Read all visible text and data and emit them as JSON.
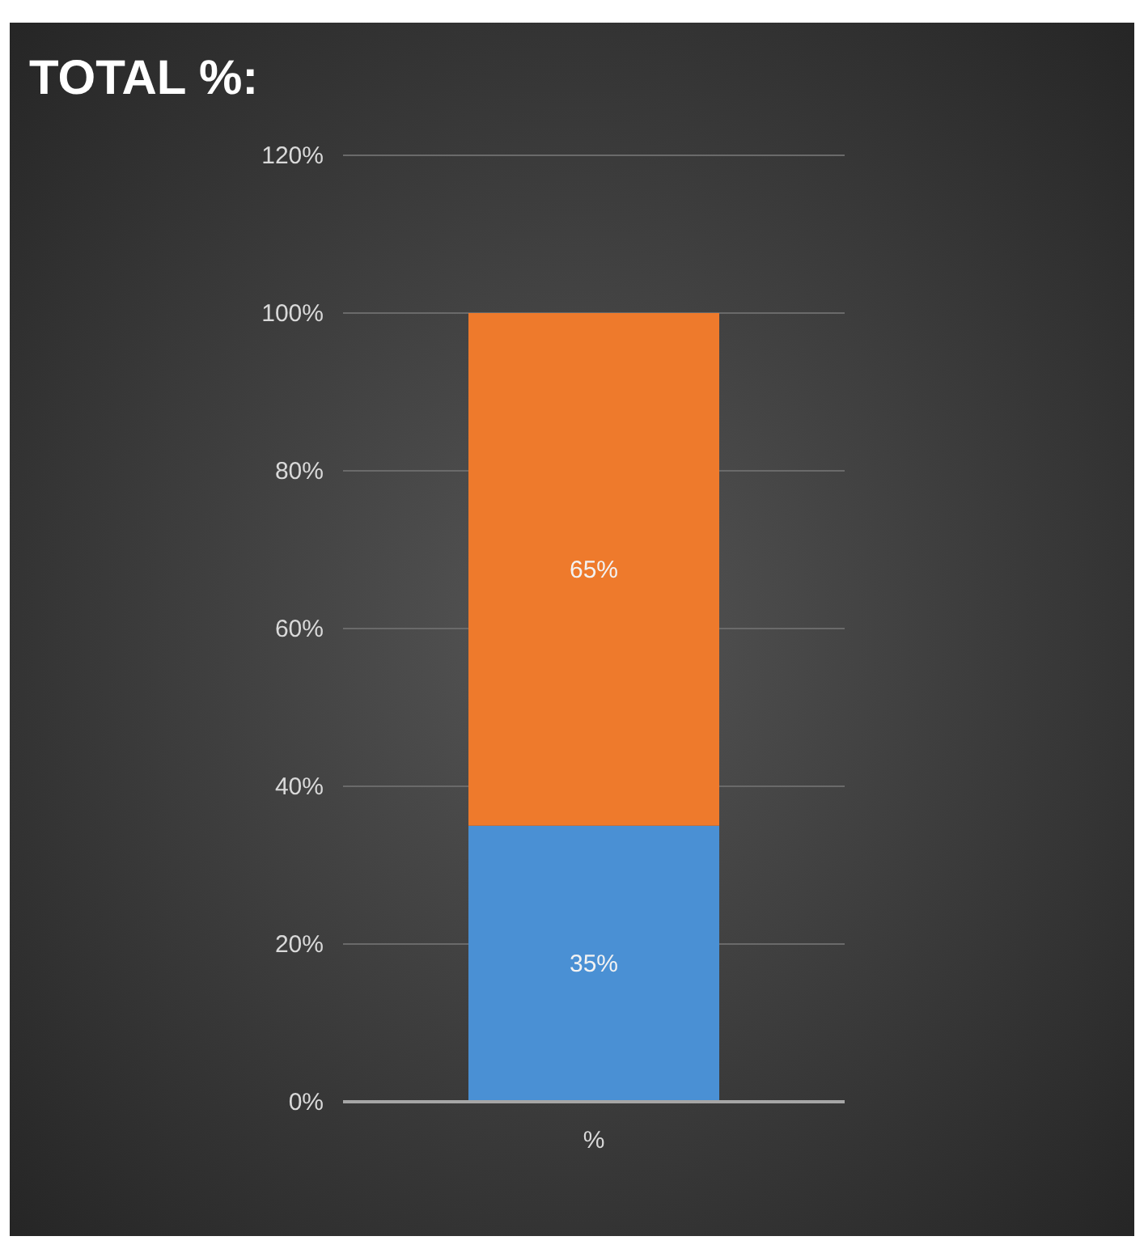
{
  "chart_data": {
    "type": "bar",
    "title": "TOTAL %:",
    "categories": [
      "%"
    ],
    "stacked": true,
    "series": [
      {
        "color": "#4a90d4",
        "values": [
          35
        ],
        "value_labels": [
          "35%"
        ]
      },
      {
        "color": "#ee7a2c",
        "values": [
          65
        ],
        "value_labels": [
          "65%"
        ]
      }
    ],
    "ylim": [
      0,
      120
    ],
    "yticks": [
      {
        "value": 0,
        "label": "0%"
      },
      {
        "value": 20,
        "label": "20%"
      },
      {
        "value": 40,
        "label": "40%"
      },
      {
        "value": 60,
        "label": "60%"
      },
      {
        "value": 80,
        "label": "80%"
      },
      {
        "value": 100,
        "label": "100%"
      },
      {
        "value": 120,
        "label": "120%"
      }
    ],
    "grid": "y"
  }
}
